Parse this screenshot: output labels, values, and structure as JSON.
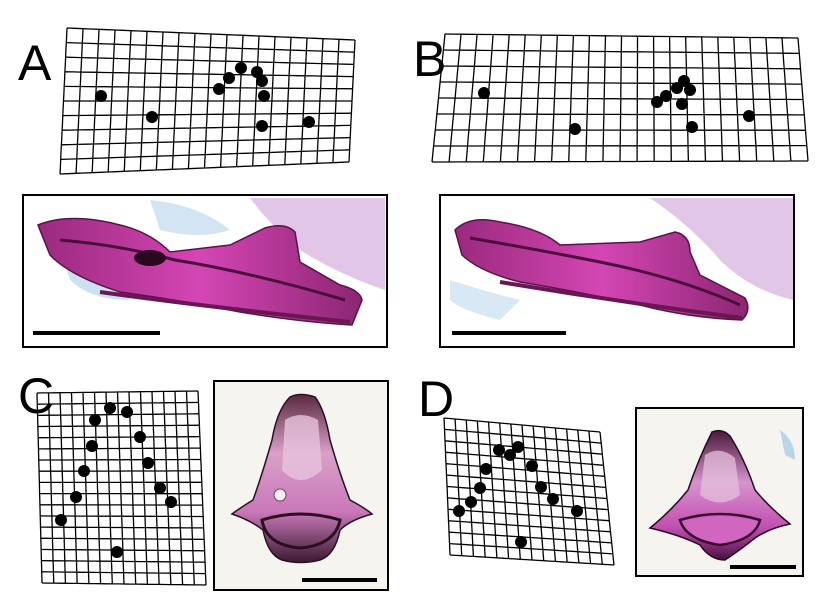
{
  "figure": {
    "panels": [
      {
        "id": "A",
        "letter": "A",
        "scale_bar": true
      },
      {
        "id": "B",
        "letter": "B",
        "scale_bar": true
      },
      {
        "id": "C",
        "letter": "C",
        "scale_bar": true
      },
      {
        "id": "D",
        "letter": "D",
        "scale_bar": true
      }
    ],
    "grid": {
      "line_color": "#000000",
      "landmark_color": "#000000"
    },
    "photo_colors": {
      "bone": "#c0399c",
      "bone_dark": "#6a1652",
      "background": "#ffffff",
      "blue_tint": "#a9cde6",
      "cartilage": "#b07ab8"
    }
  }
}
